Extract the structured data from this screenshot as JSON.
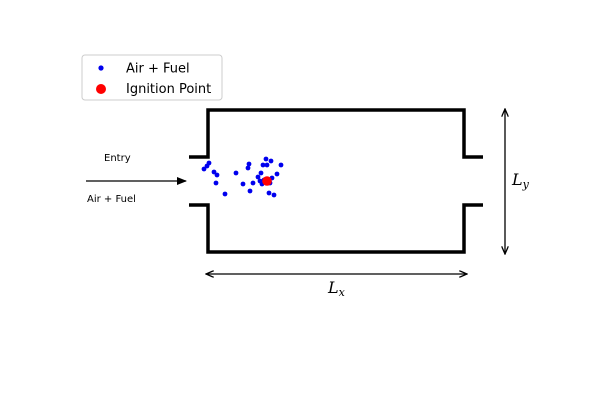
{
  "legend": {
    "items": [
      {
        "label": "Air + Fuel",
        "marker": "dot-icon",
        "color": "#0000ee"
      },
      {
        "label": "Ignition Point",
        "marker": "dot-icon",
        "color": "#ff0000"
      }
    ]
  },
  "inlet": {
    "label_top": "Entry",
    "label_bottom": "Air + Fuel"
  },
  "dimensions": {
    "x": {
      "symbol": "L",
      "subscript": "x"
    },
    "y": {
      "symbol": "L",
      "subscript": "y"
    }
  },
  "colors": {
    "wall": "#000000",
    "particle": "#0000ee",
    "ignition": "#ff0000"
  }
}
